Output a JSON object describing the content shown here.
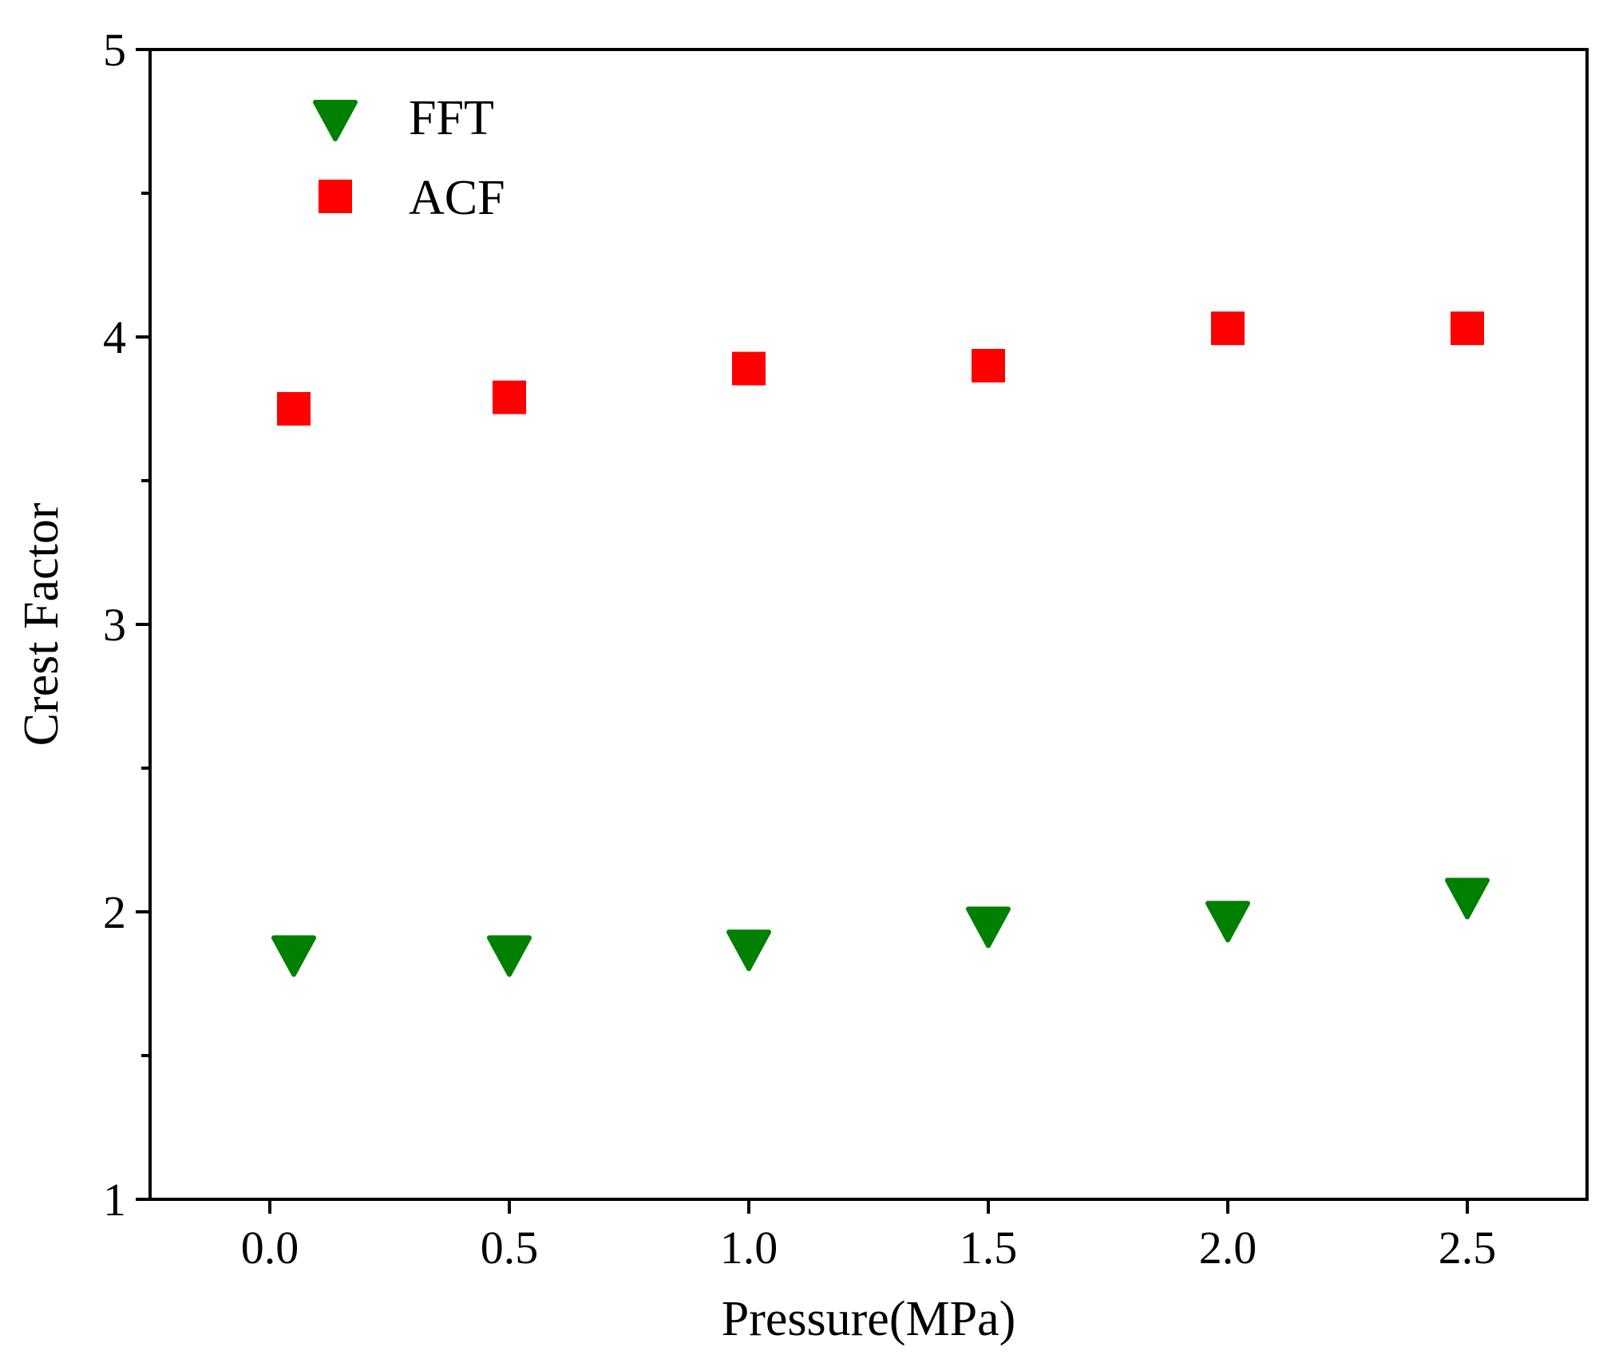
{
  "chart_data": {
    "type": "scatter",
    "title": "",
    "xlabel": "Pressure(MPa)",
    "ylabel": "Crest Factor",
    "xlim": [
      -0.25,
      2.75
    ],
    "ylim": [
      1,
      5
    ],
    "xticks": [
      0.0,
      0.5,
      1.0,
      1.5,
      2.0,
      2.5
    ],
    "xtick_labels": [
      "0.0",
      "0.5",
      "1.0",
      "1.5",
      "2.0",
      "2.5"
    ],
    "yticks": [
      1,
      2,
      3,
      4,
      5
    ],
    "ytick_labels": [
      "1",
      "2",
      "3",
      "4",
      "5"
    ],
    "y_minor_ticks": [
      1.5,
      2.5,
      3.5,
      4.5
    ],
    "grid": false,
    "legend_position": "top-left",
    "series": [
      {
        "name": "FFT",
        "marker": "triangle-down",
        "color": "#008000",
        "x": [
          0.05,
          0.5,
          1.0,
          1.5,
          2.0,
          2.5
        ],
        "y": [
          1.86,
          1.86,
          1.88,
          1.96,
          1.98,
          2.06
        ]
      },
      {
        "name": "ACF",
        "marker": "square",
        "color": "#ff0000",
        "x": [
          0.05,
          0.5,
          1.0,
          1.5,
          2.0,
          2.5
        ],
        "y": [
          3.75,
          3.79,
          3.89,
          3.9,
          4.03,
          4.03
        ]
      }
    ]
  }
}
